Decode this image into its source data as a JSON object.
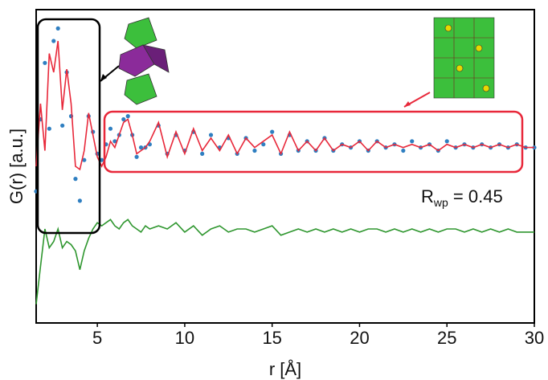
{
  "chart_data": {
    "type": "line",
    "xlabel": "r [Å]",
    "ylabel": "G(r) [a.u.]",
    "annotation": {
      "text": "R",
      "subscript": "wp",
      "rest": " = 0.45"
    },
    "x": [
      1.5,
      1.75,
      2.0,
      2.25,
      2.5,
      2.75,
      3.0,
      3.25,
      3.5,
      3.75,
      4.0,
      4.25,
      4.5,
      4.75,
      5.0,
      5.25,
      5.5,
      5.75,
      6.0,
      6.25,
      6.5,
      6.75,
      7.0,
      7.25,
      7.5,
      7.75,
      8.0,
      8.5,
      9,
      9.5,
      10,
      10.5,
      11,
      11.5,
      12,
      12.5,
      13,
      13.5,
      14,
      14.5,
      15,
      15.5,
      16,
      16.5,
      17,
      17.5,
      18,
      18.5,
      19,
      19.5,
      20,
      20.5,
      21,
      21.5,
      22,
      22.5,
      23,
      23.5,
      24,
      24.5,
      25,
      25.5,
      26,
      26.5,
      27,
      27.5,
      28,
      28.5,
      29,
      29.5,
      30
    ],
    "series": [
      {
        "style": "dots",
        "color": "#2f7fc1",
        "values": [
          4.2,
          6.5,
          8.3,
          6.2,
          9.0,
          9.4,
          6.3,
          8.0,
          6.6,
          4.6,
          3.9,
          5.2,
          6.6,
          6.1,
          5.4,
          5.2,
          5.7,
          6.2,
          5.8,
          6.0,
          6.5,
          6.6,
          6.0,
          5.3,
          5.6,
          5.6,
          5.7,
          6.3,
          5.4,
          6.0,
          5.5,
          6.1,
          5.4,
          6.0,
          5.6,
          5.9,
          5.4,
          5.9,
          5.5,
          5.7,
          6.1,
          5.4,
          6.0,
          5.5,
          5.8,
          5.5,
          5.9,
          5.5,
          5.7,
          5.6,
          5.8,
          5.5,
          5.8,
          5.6,
          5.7,
          5.5,
          5.8,
          5.6,
          5.7,
          5.5,
          5.8,
          5.6,
          5.7,
          5.6,
          5.7,
          5.6,
          5.7,
          5.6,
          5.7,
          5.6,
          5.6
        ]
      },
      {
        "style": "line",
        "color": "#e8283a",
        "values": [
          5.0,
          7.0,
          5.5,
          8.6,
          8.0,
          9.0,
          6.8,
          8.1,
          7.0,
          5.0,
          4.9,
          5.5,
          6.7,
          6.0,
          5.3,
          5.0,
          5.3,
          5.8,
          5.6,
          6.0,
          6.4,
          6.5,
          6.0,
          5.4,
          5.5,
          5.6,
          5.8,
          6.4,
          5.3,
          6.1,
          5.4,
          6.2,
          5.5,
          5.9,
          5.5,
          6.0,
          5.4,
          5.9,
          5.6,
          5.8,
          6.0,
          5.4,
          6.1,
          5.5,
          5.8,
          5.5,
          5.9,
          5.5,
          5.7,
          5.6,
          5.8,
          5.5,
          5.8,
          5.6,
          5.7,
          5.6,
          5.7,
          5.6,
          5.7,
          5.5,
          5.7,
          5.6,
          5.7,
          5.6,
          5.7,
          5.6,
          5.7,
          5.6,
          5.7,
          5.6,
          5.6
        ]
      },
      {
        "style": "line",
        "color": "#2e962e",
        "values": [
          0.6,
          1.8,
          3.0,
          2.4,
          2.6,
          3.0,
          2.4,
          2.6,
          2.5,
          2.3,
          1.7,
          2.3,
          2.7,
          3.0,
          3.2,
          3.1,
          3.2,
          3.3,
          3.1,
          3.0,
          3.2,
          3.3,
          3.1,
          3.0,
          2.9,
          3.1,
          3.0,
          3.1,
          3.0,
          3.2,
          2.9,
          3.1,
          2.8,
          3.0,
          3.1,
          2.9,
          3.0,
          3.0,
          2.9,
          3.0,
          3.1,
          2.8,
          2.9,
          3.0,
          2.9,
          3.0,
          2.9,
          3.0,
          2.9,
          3.0,
          2.9,
          3.0,
          3.0,
          2.9,
          3.0,
          2.9,
          3.0,
          2.9,
          3.0,
          2.9,
          3.0,
          3.0,
          2.9,
          3.0,
          2.9,
          3.0,
          2.9,
          3.0,
          2.9,
          2.9,
          2.9
        ]
      }
    ],
    "xlim": [
      1.5,
      30
    ],
    "ylim": [
      0,
      10
    ],
    "xticks": [
      5,
      10,
      15,
      20,
      25,
      30
    ]
  }
}
